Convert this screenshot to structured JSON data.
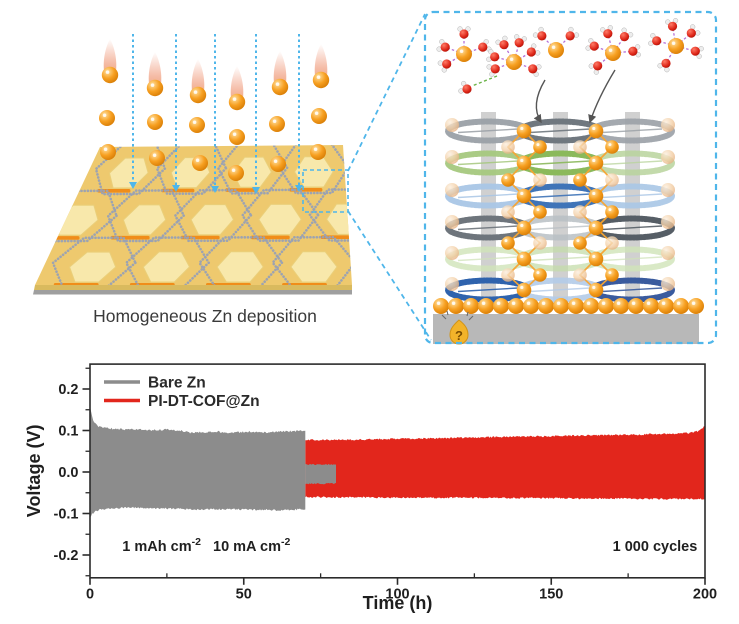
{
  "left_panel": {
    "caption": "Homogeneous Zn deposition",
    "icons": [
      "zn-ion-sphere",
      "flame-tail",
      "deposition-arrow-icon",
      "zoom-region-box"
    ],
    "colors": {
      "plate_gold": "#eec96e",
      "tile_gold": "#f8e8ab",
      "bar_orange": "#f08d1a",
      "lattice_gray": "#98a1b4",
      "arrow_cyan": "#4fb6ea",
      "zn_orange": "#f59a1d"
    }
  },
  "right_panel": {
    "lightbulb_glyph": "?",
    "icons": [
      "hydrated-zn-cluster",
      "water-molecule",
      "cof-ring-stack",
      "zn-electrode-sphere-row",
      "lightbulb-question-icon"
    ],
    "colors": {
      "border_cyan": "#4fb6ea",
      "water_red": "#dd2517",
      "water_hydrogen": "#ededed",
      "bond_purple": "#b570d8",
      "bond_green": "#6cb44a",
      "pillar_gray": "#cccccc",
      "substrate_gray": "#b8b8b8",
      "zn_orange": "#f59a1d",
      "faded_zn": "#f3d2ae",
      "zigzag_orange": "#f6a433"
    },
    "ring_rows": [
      {
        "colors": [
          "#9aa0a6",
          "#70787f",
          "#9aa0a6"
        ],
        "opacity": [
          0.95,
          1,
          0.9
        ]
      },
      {
        "colors": [
          "#a5c87e",
          "#8bb95b",
          "#b9d49c"
        ],
        "opacity": [
          0.95,
          1,
          0.85
        ]
      },
      {
        "colors": [
          "#a9c6e6",
          "#3f74b8",
          "#a9c6e6"
        ],
        "opacity": [
          0.95,
          1,
          0.9
        ]
      },
      {
        "colors": [
          "#6e757c",
          "#b9bfc4",
          "#565e66"
        ],
        "opacity": [
          1,
          0.85,
          1
        ]
      },
      {
        "colors": [
          "#cfe3b8",
          "#c4dcaa",
          "#cfe3b8"
        ],
        "opacity": [
          0.8,
          0.75,
          0.8
        ]
      },
      {
        "colors": [
          "#2f63ad",
          "#b3cbe8",
          "#3a5b9e"
        ],
        "opacity": [
          1,
          0.9,
          1
        ]
      }
    ]
  },
  "chart_data": {
    "type": "area",
    "title": "",
    "xlabel": "Time (h)",
    "ylabel": "Voltage (V)",
    "xlim": [
      0,
      200
    ],
    "ylim": [
      -0.255,
      0.26
    ],
    "grid": false,
    "frame": true,
    "legend_position": "top-left",
    "x_major_ticks": [
      0,
      50,
      100,
      150,
      200
    ],
    "x_minor_ticks": [
      25,
      75,
      125,
      175
    ],
    "y_major_ticks": [
      0.2,
      0.1,
      0.0,
      -0.1,
      -0.2
    ],
    "y_minor_ticks": [
      0.25,
      0.15,
      0.05,
      -0.05,
      -0.15,
      -0.25
    ],
    "y_tick_labels": [
      "0.2",
      "0.1",
      "0.0",
      "-0.1",
      "-0.2"
    ],
    "x_tick_labels": [
      "0",
      "50",
      "100",
      "150",
      "200"
    ],
    "legend": [
      {
        "label": "Bare Zn",
        "color": "#8c8c8c"
      },
      {
        "label": "PI-DT-COF@Zn",
        "color": "#e2261c"
      }
    ],
    "annotations": [
      {
        "name": "areal-capacity-label",
        "x": 10.5,
        "y": -0.19,
        "anchor": "start",
        "parts": [
          {
            "t": "1 mAh cm"
          },
          {
            "t": "-2",
            "sup": true
          }
        ]
      },
      {
        "name": "current-density-label",
        "x": 40,
        "y": -0.19,
        "anchor": "start",
        "parts": [
          {
            "t": "10 mA cm"
          },
          {
            "t": "-2",
            "sup": true
          }
        ]
      },
      {
        "name": "cycles-label",
        "x": 197.5,
        "y": -0.19,
        "anchor": "end",
        "parts": [
          {
            "t": "1 000 cycles"
          }
        ]
      }
    ],
    "series": [
      {
        "name": "Bare Zn",
        "color": "#8c8c8c",
        "units": {
          "x": "h",
          "y": "V"
        },
        "envelope": [
          [
            0,
            0.158,
            -0.108
          ],
          [
            0.7,
            0.132,
            -0.101
          ],
          [
            1.5,
            0.117,
            -0.096
          ],
          [
            3,
            0.109,
            -0.091
          ],
          [
            6,
            0.105,
            -0.088
          ],
          [
            10,
            0.103,
            -0.086
          ],
          [
            15,
            0.102,
            -0.086
          ],
          [
            20,
            0.101,
            -0.087
          ],
          [
            25,
            0.102,
            -0.088
          ],
          [
            30,
            0.099,
            -0.089
          ],
          [
            33,
            0.094,
            -0.09
          ],
          [
            37,
            0.096,
            -0.09
          ],
          [
            41,
            0.098,
            -0.09
          ],
          [
            45,
            0.094,
            -0.089
          ],
          [
            49,
            0.096,
            -0.09
          ],
          [
            53,
            0.097,
            -0.091
          ],
          [
            57,
            0.095,
            -0.091
          ],
          [
            61,
            0.097,
            -0.092
          ],
          [
            65,
            0.098,
            -0.091
          ],
          [
            68,
            0.099,
            -0.09
          ],
          [
            70,
            0.098,
            -0.09
          ]
        ],
        "tail_envelope": [
          [
            70,
            0.018,
            -0.028
          ],
          [
            80,
            0.018,
            -0.028
          ]
        ]
      },
      {
        "name": "PI-DT-COF@Zn",
        "color": "#e2261c",
        "units": {
          "x": "h",
          "y": "V"
        },
        "envelope": [
          [
            70,
            0.078,
            -0.06
          ],
          [
            78,
            0.077,
            -0.061
          ],
          [
            88,
            0.078,
            -0.061
          ],
          [
            100,
            0.08,
            -0.062
          ],
          [
            112,
            0.081,
            -0.062
          ],
          [
            124,
            0.083,
            -0.062
          ],
          [
            136,
            0.085,
            -0.063
          ],
          [
            148,
            0.086,
            -0.063
          ],
          [
            160,
            0.088,
            -0.064
          ],
          [
            172,
            0.089,
            -0.064
          ],
          [
            182,
            0.091,
            -0.065
          ],
          [
            190,
            0.092,
            -0.065
          ],
          [
            195,
            0.094,
            -0.065
          ],
          [
            198,
            0.099,
            -0.065
          ],
          [
            199.3,
            0.107,
            -0.065
          ],
          [
            200,
            0.112,
            -0.065
          ]
        ]
      }
    ]
  }
}
